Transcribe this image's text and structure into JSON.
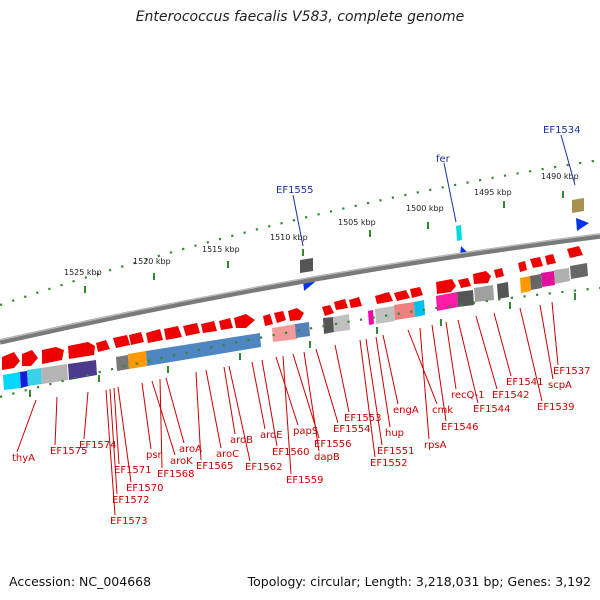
{
  "title": "Enterococcus faecalis V583, complete genome",
  "footer": {
    "accession": "Accession: NC_004668",
    "summary": "Topology: circular; Length: 3,218,031 bp; Genes: 3,192"
  },
  "scale_labels": [
    "1525 kbp",
    "1520 kbp",
    "1515 kbp",
    "1510 kbp",
    "1505 kbp",
    "1500 kbp",
    "1495 kbp",
    "1490 kbp"
  ],
  "top_labels": [
    "EF1555",
    "fer",
    "EF1534"
  ],
  "gene_labels": [
    "thyA",
    "EF1575",
    "EF1574",
    "EF1573",
    "EF1572",
    "EF1571",
    "EF1570",
    "psr",
    "aroK",
    "aroA",
    "EF1568",
    "EF1565",
    "aroC",
    "aroB",
    "EF1562",
    "aroE",
    "EF1560",
    "papS",
    "EF1559",
    "EF1556",
    "dapB",
    "EF1554",
    "EF1553",
    "EF1552",
    "EF1551",
    "hup",
    "engA",
    "cmk",
    "rpsA",
    "EF1546",
    "recQ-1",
    "EF1544",
    "EF1542",
    "EF1541",
    "EF1539",
    "scpA",
    "EF1537"
  ],
  "colors": {
    "forward_gene": "#ee0000",
    "label_line": "#cc0000",
    "top_label": "#1a2fa0",
    "backbone": "#8a8a8a",
    "tick": "#2e8b2e"
  }
}
